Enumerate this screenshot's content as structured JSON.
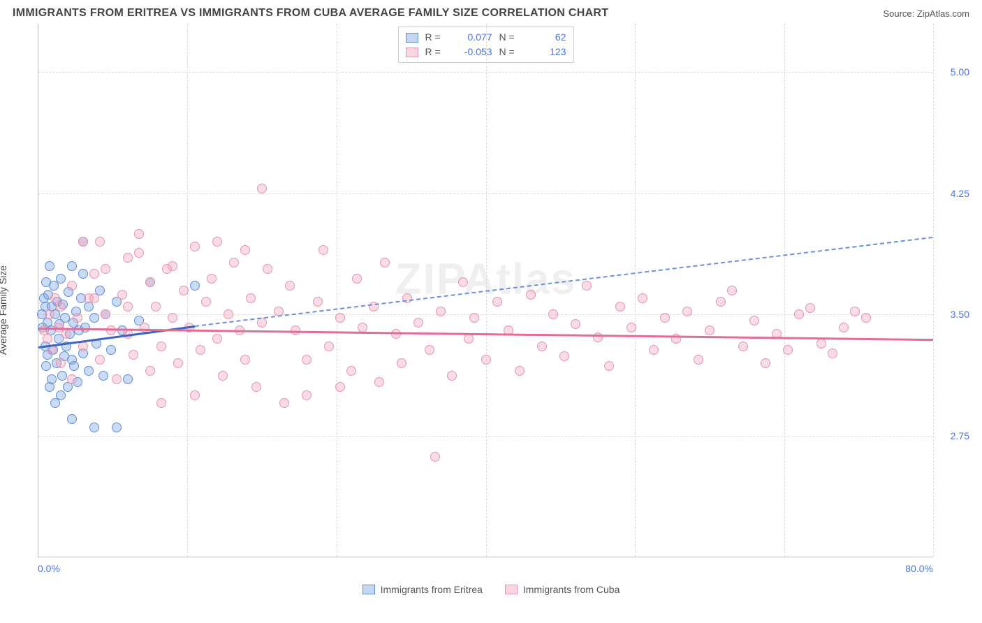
{
  "title": "IMMIGRANTS FROM ERITREA VS IMMIGRANTS FROM CUBA AVERAGE FAMILY SIZE CORRELATION CHART",
  "source": "Source: ZipAtlas.com",
  "watermark": "ZIPAtlas",
  "chart": {
    "type": "scatter",
    "ylabel": "Average Family Size",
    "xlim": [
      0,
      80
    ],
    "ylim": [
      2.0,
      5.3
    ],
    "xticks_label_min": "0.0%",
    "xticks_label_max": "80.0%",
    "xticks": [
      0,
      13.33,
      26.67,
      40,
      53.33,
      66.67,
      80
    ],
    "yticks": [
      2.75,
      3.5,
      4.25,
      5.0
    ],
    "ytick_labels": [
      "2.75",
      "3.50",
      "4.25",
      "5.00"
    ],
    "grid_color": "#dcdcdc",
    "background_color": "#ffffff",
    "axis_color": "#bbbbbb",
    "tick_label_color": "#4a74e8",
    "label_fontsize": 14,
    "marker_radius": 7,
    "series": [
      {
        "name": "Immigrants from Eritrea",
        "color_fill": "rgba(126,164,230,0.40)",
        "color_stroke": "#5e8ed8",
        "R": "0.077",
        "N": "62",
        "regression": {
          "x1": 0,
          "y1": 3.3,
          "x2": 14,
          "y2": 3.43,
          "extrapolate_to_x": 80,
          "extrapolate_y": 3.98,
          "solid_color": "#3a64c8",
          "dash_color": "#6a90de"
        },
        "points": [
          [
            0.3,
            3.5
          ],
          [
            0.4,
            3.42
          ],
          [
            0.5,
            3.6
          ],
          [
            0.6,
            3.3
          ],
          [
            0.6,
            3.55
          ],
          [
            0.7,
            3.18
          ],
          [
            0.7,
            3.7
          ],
          [
            0.8,
            3.45
          ],
          [
            0.8,
            3.25
          ],
          [
            0.9,
            3.62
          ],
          [
            1.0,
            3.05
          ],
          [
            1.0,
            3.8
          ],
          [
            1.1,
            3.4
          ],
          [
            1.2,
            3.1
          ],
          [
            1.2,
            3.55
          ],
          [
            1.3,
            3.28
          ],
          [
            1.4,
            3.68
          ],
          [
            1.5,
            3.5
          ],
          [
            1.5,
            2.95
          ],
          [
            1.6,
            3.2
          ],
          [
            1.7,
            3.58
          ],
          [
            1.8,
            3.35
          ],
          [
            1.9,
            3.44
          ],
          [
            2.0,
            3.0
          ],
          [
            2.0,
            3.72
          ],
          [
            2.1,
            3.12
          ],
          [
            2.2,
            3.56
          ],
          [
            2.3,
            3.24
          ],
          [
            2.4,
            3.48
          ],
          [
            2.5,
            3.3
          ],
          [
            2.6,
            3.05
          ],
          [
            2.7,
            3.64
          ],
          [
            2.8,
            3.38
          ],
          [
            3.0,
            3.22
          ],
          [
            3.0,
            3.8
          ],
          [
            3.1,
            3.45
          ],
          [
            3.2,
            3.18
          ],
          [
            3.4,
            3.52
          ],
          [
            3.5,
            3.08
          ],
          [
            3.6,
            3.4
          ],
          [
            3.8,
            3.6
          ],
          [
            4.0,
            3.26
          ],
          [
            4.0,
            3.75
          ],
          [
            4.2,
            3.42
          ],
          [
            4.5,
            3.55
          ],
          [
            4.5,
            3.15
          ],
          [
            5.0,
            2.8
          ],
          [
            5.0,
            3.48
          ],
          [
            5.2,
            3.32
          ],
          [
            5.5,
            3.65
          ],
          [
            5.8,
            3.12
          ],
          [
            6.0,
            3.5
          ],
          [
            6.5,
            3.28
          ],
          [
            7.0,
            2.8
          ],
          [
            7.0,
            3.58
          ],
          [
            7.5,
            3.4
          ],
          [
            8.0,
            3.1
          ],
          [
            4.0,
            3.95
          ],
          [
            9.0,
            3.46
          ],
          [
            10.0,
            3.7
          ],
          [
            14.0,
            3.68
          ],
          [
            3.0,
            2.85
          ]
        ]
      },
      {
        "name": "Immigrants from Cuba",
        "color_fill": "rgba(244,160,184,0.38)",
        "color_stroke": "#e794ad",
        "R": "-0.053",
        "N": "123",
        "regression": {
          "x1": 0,
          "y1": 3.42,
          "x2": 80,
          "y2": 3.35,
          "solid_color": "#e86a93"
        },
        "points": [
          [
            0.5,
            3.4
          ],
          [
            0.8,
            3.35
          ],
          [
            1.0,
            3.5
          ],
          [
            1.2,
            3.28
          ],
          [
            1.5,
            3.6
          ],
          [
            1.8,
            3.42
          ],
          [
            2.0,
            3.2
          ],
          [
            2.0,
            3.55
          ],
          [
            2.5,
            3.38
          ],
          [
            3.0,
            3.68
          ],
          [
            3.0,
            3.1
          ],
          [
            3.5,
            3.48
          ],
          [
            4.0,
            3.3
          ],
          [
            4.5,
            3.6
          ],
          [
            5.5,
            3.95
          ],
          [
            5.0,
            3.75
          ],
          [
            5.5,
            3.22
          ],
          [
            6.0,
            3.5
          ],
          [
            6.5,
            3.4
          ],
          [
            7.0,
            3.1
          ],
          [
            7.5,
            3.62
          ],
          [
            8.0,
            3.38
          ],
          [
            8.0,
            3.85
          ],
          [
            8.5,
            3.25
          ],
          [
            9.0,
            3.88
          ],
          [
            9.5,
            3.42
          ],
          [
            10.0,
            3.15
          ],
          [
            10.0,
            3.7
          ],
          [
            10.5,
            3.55
          ],
          [
            11.0,
            3.3
          ],
          [
            11.5,
            3.78
          ],
          [
            12.0,
            3.48
          ],
          [
            12.5,
            3.2
          ],
          [
            13.0,
            3.65
          ],
          [
            13.5,
            3.42
          ],
          [
            14.0,
            3.92
          ],
          [
            14.5,
            3.28
          ],
          [
            15.0,
            3.58
          ],
          [
            15.5,
            3.72
          ],
          [
            16.0,
            3.35
          ],
          [
            16.5,
            3.12
          ],
          [
            17.0,
            3.5
          ],
          [
            17.5,
            3.82
          ],
          [
            18.0,
            3.4
          ],
          [
            18.5,
            3.22
          ],
          [
            19.0,
            3.6
          ],
          [
            19.5,
            3.05
          ],
          [
            20.0,
            3.45
          ],
          [
            20.5,
            3.78
          ],
          [
            20.0,
            4.28
          ],
          [
            21.5,
            3.52
          ],
          [
            22.0,
            2.95
          ],
          [
            22.5,
            3.68
          ],
          [
            23.0,
            3.4
          ],
          [
            24.0,
            3.22
          ],
          [
            25.0,
            3.58
          ],
          [
            25.5,
            3.9
          ],
          [
            26.0,
            3.3
          ],
          [
            27.0,
            3.48
          ],
          [
            28.0,
            3.15
          ],
          [
            28.5,
            3.72
          ],
          [
            29.0,
            3.42
          ],
          [
            30.0,
            3.55
          ],
          [
            30.5,
            3.08
          ],
          [
            31.0,
            3.82
          ],
          [
            32.0,
            3.38
          ],
          [
            32.5,
            3.2
          ],
          [
            33.0,
            3.6
          ],
          [
            34.0,
            3.45
          ],
          [
            35.0,
            3.28
          ],
          [
            35.5,
            2.62
          ],
          [
            36.0,
            3.52
          ],
          [
            37.0,
            3.12
          ],
          [
            38.0,
            3.7
          ],
          [
            38.5,
            3.35
          ],
          [
            39.0,
            3.48
          ],
          [
            40.0,
            3.22
          ],
          [
            41.0,
            3.58
          ],
          [
            42.0,
            3.4
          ],
          [
            43.0,
            3.15
          ],
          [
            44.0,
            3.62
          ],
          [
            45.0,
            3.3
          ],
          [
            46.0,
            3.5
          ],
          [
            47.0,
            3.24
          ],
          [
            48.0,
            3.44
          ],
          [
            49.0,
            3.68
          ],
          [
            50.0,
            3.36
          ],
          [
            51.0,
            3.18
          ],
          [
            52.0,
            3.55
          ],
          [
            53.0,
            3.42
          ],
          [
            54.0,
            3.6
          ],
          [
            55.0,
            3.28
          ],
          [
            56.0,
            3.48
          ],
          [
            57.0,
            3.35
          ],
          [
            58.0,
            3.52
          ],
          [
            59.0,
            3.22
          ],
          [
            60.0,
            3.4
          ],
          [
            61.0,
            3.58
          ],
          [
            62.0,
            3.65
          ],
          [
            63.0,
            3.3
          ],
          [
            64.0,
            3.46
          ],
          [
            65.0,
            3.2
          ],
          [
            66.0,
            3.38
          ],
          [
            67.0,
            3.28
          ],
          [
            68.0,
            3.5
          ],
          [
            69.0,
            3.54
          ],
          [
            70.0,
            3.32
          ],
          [
            71.0,
            3.26
          ],
          [
            72.0,
            3.42
          ],
          [
            73.0,
            3.52
          ],
          [
            74.0,
            3.48
          ],
          [
            14.0,
            3.0
          ],
          [
            11.0,
            2.95
          ],
          [
            16.0,
            3.95
          ],
          [
            24.0,
            3.0
          ],
          [
            27.0,
            3.05
          ],
          [
            8.0,
            3.55
          ],
          [
            5.0,
            3.6
          ],
          [
            6.0,
            3.78
          ],
          [
            18.5,
            3.9
          ],
          [
            9.0,
            4.0
          ],
          [
            4.0,
            3.95
          ],
          [
            12.0,
            3.8
          ]
        ]
      }
    ]
  },
  "legend_bottom": {
    "series1_label": "Immigrants from Eritrea",
    "series2_label": "Immigrants from Cuba"
  }
}
